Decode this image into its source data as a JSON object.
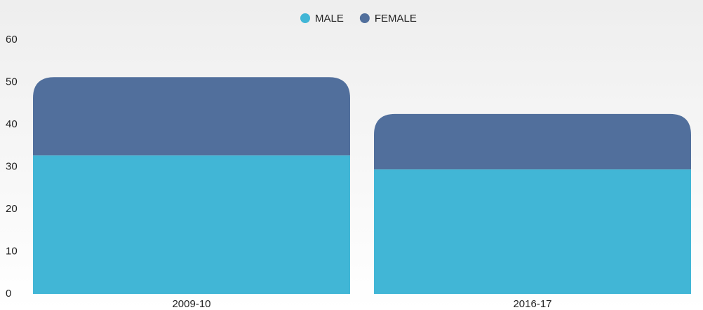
{
  "chart_data": {
    "type": "stacked-bar",
    "categories": [
      "2009-10",
      "2016-17"
    ],
    "series": [
      {
        "name": "MALE",
        "color": "#41b6d6",
        "values": [
          32.7,
          29.4
        ]
      },
      {
        "name": "FEMALE",
        "color": "#516f9c",
        "values": [
          18.5,
          13.1
        ]
      }
    ],
    "ylim": [
      0,
      60
    ],
    "yticks": [
      0,
      10,
      20,
      30,
      40,
      50,
      60
    ],
    "grid": false,
    "legend": "top"
  }
}
